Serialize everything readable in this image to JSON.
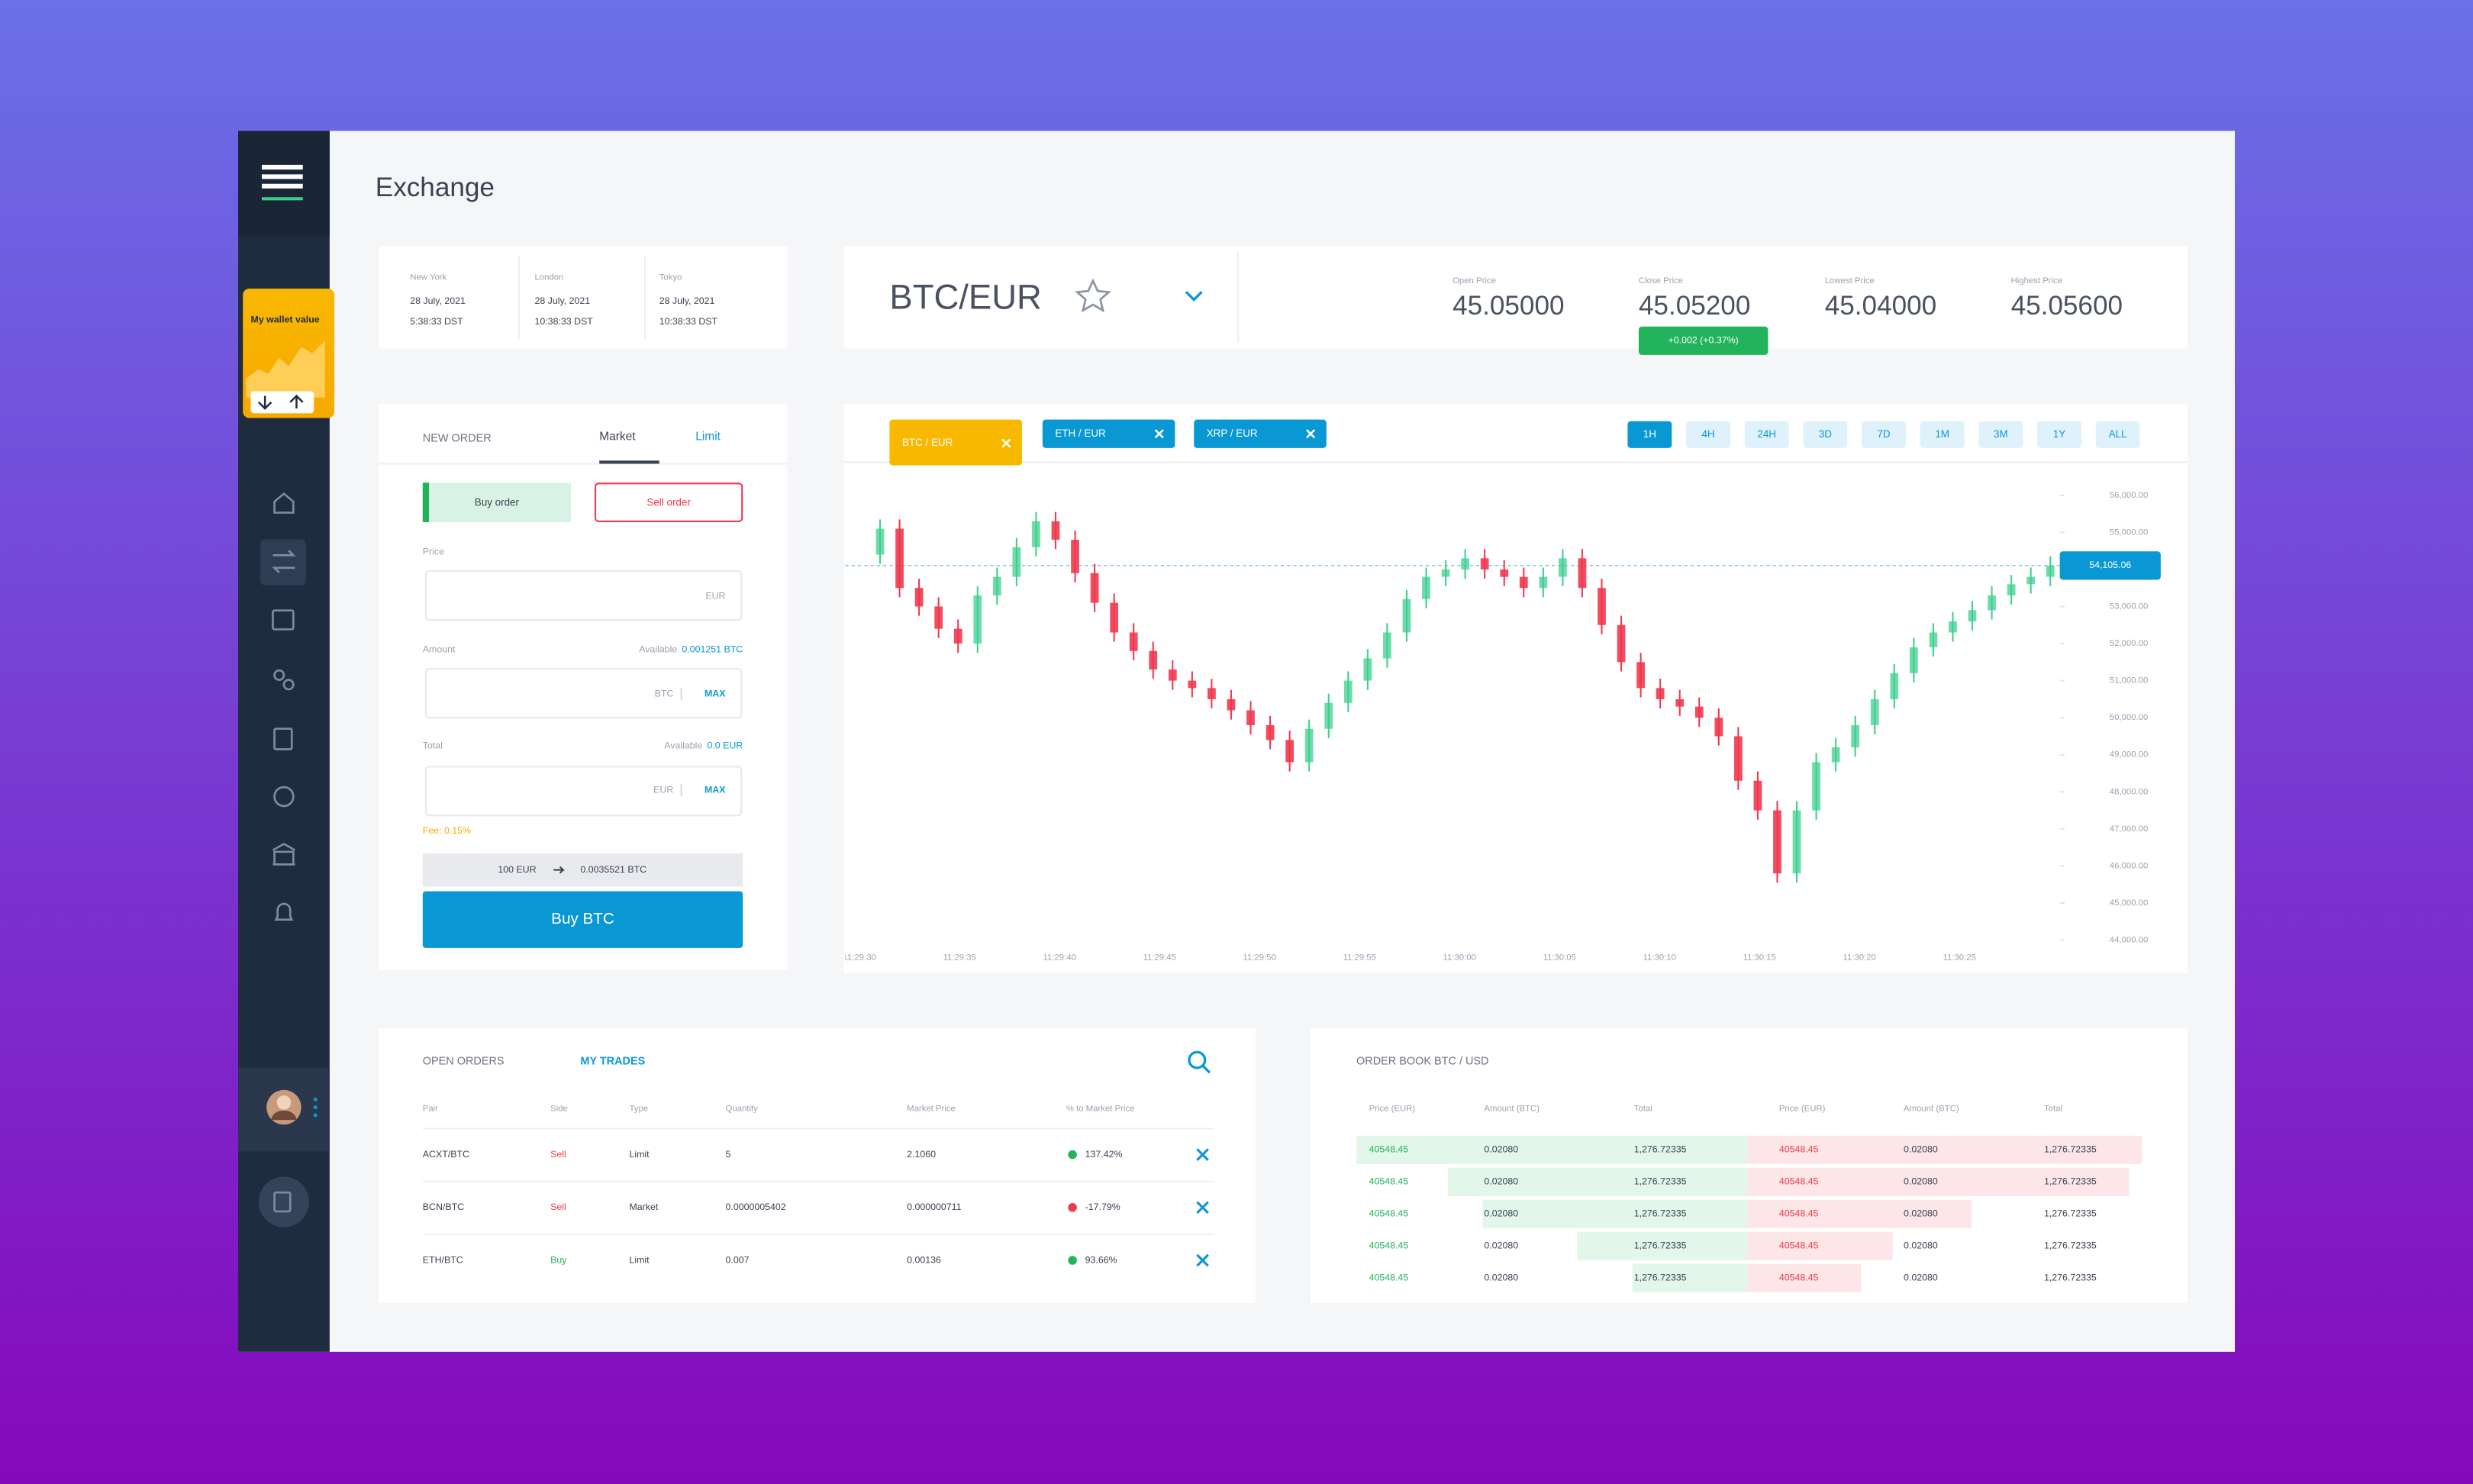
{
  "sidebar": {
    "wallet_label": "My wallet value"
  },
  "header": {
    "title": "Exchange"
  },
  "clocks": [
    {
      "city": "New York",
      "date": "28 July, 2021",
      "time": "5:38:33 DST"
    },
    {
      "city": "London",
      "date": "28 July, 2021",
      "time": "10:38:33 DST"
    },
    {
      "city": "Tokyo",
      "date": "28 July, 2021",
      "time": "10:38:33 DST"
    }
  ],
  "ticker": {
    "pair": "BTC/EUR",
    "stats": [
      {
        "label": "Open Price",
        "value": "45.05000"
      },
      {
        "label": "Close Price",
        "value": "45.05200",
        "change": "+0.002 (+0.37%)"
      },
      {
        "label": "Lowest Price",
        "value": "45.04000"
      },
      {
        "label": "Highest Price",
        "value": "45.05600"
      }
    ]
  },
  "new_order": {
    "title": "NEW ORDER",
    "tabs": [
      "Market",
      "Limit"
    ],
    "buy_button": "Buy order",
    "sell_button": "Sell order",
    "price": {
      "label": "Price",
      "unit": "EUR"
    },
    "amount": {
      "label": "Amount",
      "available_label": "Available",
      "available": "0.001251 BTC",
      "unit": "BTC",
      "max": "MAX"
    },
    "total": {
      "label": "Total",
      "available_label": "Available",
      "available": "0.0 EUR",
      "unit": "EUR",
      "max": "MAX"
    },
    "fee": "Fee: 0.15%",
    "conversion_from": "100 EUR",
    "conversion_to": "0.0035521 BTC",
    "submit": "Buy BTC"
  },
  "chart_tabs": {
    "pairs": [
      "BTC / EUR",
      "ETH / EUR",
      "XRP / EUR"
    ],
    "ranges": [
      "1H",
      "4H",
      "24H",
      "3D",
      "7D",
      "1M",
      "3M",
      "1Y",
      "ALL"
    ]
  },
  "open_orders": {
    "tabs": [
      "OPEN ORDERS",
      "MY TRADES"
    ],
    "columns": [
      "Pair",
      "Side",
      "Type",
      "Quantity",
      "Market Price",
      "% to Market Price"
    ],
    "rows": [
      [
        "ACXT/BTC",
        "Sell",
        "Limit",
        "5",
        "2.1060",
        "137.42%"
      ],
      [
        "BCN/BTC",
        "Sell",
        "Market",
        "0.0000005402",
        "0.000000711",
        "-17.79%"
      ],
      [
        "ETH/BTC",
        "Buy",
        "Limit",
        "0.007",
        "0.00136",
        "93.66%"
      ]
    ]
  },
  "order_book": {
    "title": "ORDER BOOK BTC / USD",
    "columns": [
      "Price (EUR)",
      "Amount (BTC)",
      "Total",
      "Price (EUR)",
      "Amount (BTC)",
      "Total"
    ],
    "rows": [
      [
        "40548.45",
        "0.02080",
        "1,276.72335",
        "40548.45",
        "0.02080",
        "1,276.72335"
      ],
      [
        "40548.45",
        "0.02080",
        "1,276.72335",
        "40548.45",
        "0.02080",
        "1,276.72335"
      ],
      [
        "40548.45",
        "0.02080",
        "1,276.72335",
        "40548.45",
        "0.02080",
        "1,276.72335"
      ],
      [
        "40548.45",
        "0.02080",
        "1,276.72335",
        "40548.45",
        "0.02080",
        "1,276.72335"
      ],
      [
        "40548.45",
        "0.02080",
        "1,276.72335",
        "40548.45",
        "0.02080",
        "1,276.72335"
      ]
    ]
  },
  "chart_data": {
    "type": "candlestick",
    "up_color": "#3ecf8e",
    "down_color": "#f0384e",
    "open": [
      54400,
      55100,
      53500,
      53000,
      52400,
      52000,
      53300,
      53800,
      54600,
      55300,
      54800,
      53900,
      53100,
      52300,
      51800,
      51300,
      51000,
      50800,
      50500,
      50200,
      49800,
      49400,
      48800,
      49700,
      50400,
      51000,
      51600,
      52300,
      53200,
      53800,
      54000,
      54300,
      54000,
      53800,
      53500,
      53800,
      54300,
      53500,
      52500,
      51500,
      50800,
      50500,
      50300,
      50000,
      49500,
      48300,
      47500,
      45800,
      47500,
      48800,
      49200,
      49800,
      50500,
      51200,
      51900,
      52300,
      52600,
      52900,
      53300,
      53600,
      53800
    ],
    "close": [
      55100,
      53500,
      53000,
      52400,
      52000,
      53300,
      53800,
      54600,
      55300,
      54800,
      53900,
      53100,
      52300,
      51800,
      51300,
      51000,
      50800,
      50500,
      50200,
      49800,
      49400,
      48800,
      49700,
      50400,
      51000,
      51600,
      52300,
      53200,
      53800,
      54000,
      54300,
      54000,
      53800,
      53500,
      53800,
      54300,
      53500,
      52500,
      51500,
      50800,
      50500,
      50300,
      50000,
      49500,
      48300,
      47500,
      45800,
      47500,
      48800,
      49200,
      49800,
      50500,
      51200,
      51900,
      52300,
      52600,
      52900,
      53300,
      53600,
      53800,
      54105.06
    ],
    "high": [
      55350,
      55350,
      53750,
      53250,
      52650,
      53550,
      54050,
      54850,
      55550,
      55550,
      55050,
      54150,
      53350,
      52550,
      52050,
      51550,
      51250,
      51050,
      50750,
      50450,
      50050,
      49650,
      49950,
      50650,
      51250,
      51850,
      52550,
      53450,
      54050,
      54250,
      54550,
      54550,
      54250,
      54050,
      54050,
      54550,
      54550,
      53750,
      52750,
      51750,
      51050,
      50750,
      50550,
      50250,
      49750,
      48550,
      47750,
      47750,
      49050,
      49450,
      50050,
      50750,
      51450,
      52150,
      52550,
      52850,
      53150,
      53550,
      53850,
      54050,
      54355
    ],
    "low": [
      54150,
      53250,
      52750,
      52150,
      51750,
      51750,
      53050,
      53550,
      54350,
      54550,
      53650,
      52850,
      52050,
      51550,
      51050,
      50750,
      50550,
      50250,
      49950,
      49550,
      49150,
      48550,
      48550,
      49450,
      50150,
      50750,
      51350,
      52050,
      52950,
      53550,
      53750,
      53750,
      53550,
      53250,
      53250,
      53550,
      53250,
      52250,
      51250,
      50550,
      50250,
      50050,
      49750,
      49250,
      48050,
      47250,
      45550,
      45550,
      47250,
      48550,
      48950,
      49550,
      50250,
      50950,
      51650,
      52050,
      52350,
      52650,
      53050,
      53350,
      53550
    ],
    "ylim": [
      44000,
      56000
    ],
    "yticks": [
      {
        "value": 56000,
        "label": "56,000.00"
      },
      {
        "value": 55000,
        "label": "55,000.00"
      },
      {
        "value": 53000,
        "label": "53,000.00"
      },
      {
        "value": 52000,
        "label": "52,000.00"
      },
      {
        "value": 51000,
        "label": "51,000.00"
      },
      {
        "value": 50000,
        "label": "50,000.00"
      },
      {
        "value": 49000,
        "label": "49,000.00"
      },
      {
        "value": 48000,
        "label": "48,000.00"
      },
      {
        "value": 47000,
        "label": "47,000.00"
      },
      {
        "value": 46000,
        "label": "46,000.00"
      },
      {
        "value": 45000,
        "label": "45,000.00"
      },
      {
        "value": 44000,
        "label": "44,000.00"
      }
    ],
    "last_price": {
      "value": 54105.06,
      "label": "54,105.06"
    },
    "x_labels": [
      "11:29:30",
      "11:29:35",
      "11:29:40",
      "11:29:45",
      "11:29:50",
      "11:29:55",
      "11:30:00",
      "11:30:05",
      "11:30:10",
      "11:30:15",
      "11:30:20",
      "11:30:25"
    ],
    "grid": false
  }
}
